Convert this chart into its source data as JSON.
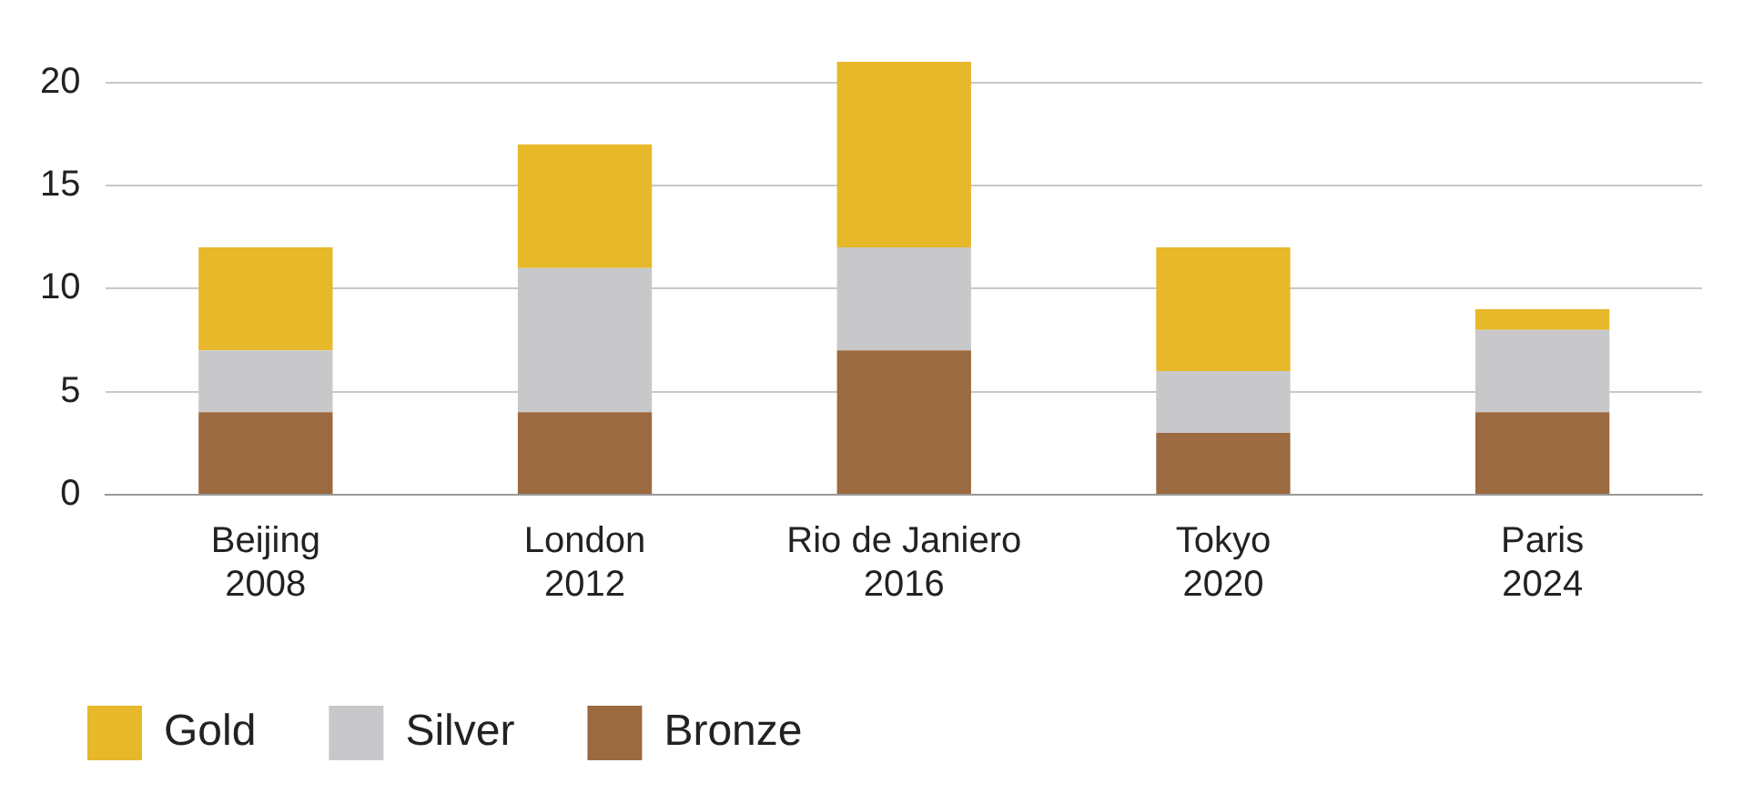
{
  "chart_data": {
    "type": "bar",
    "stacked": true,
    "categories": [
      "Beijing\n2008",
      "London\n2012",
      "Rio de Janiero\n2016",
      "Tokyo\n2020",
      "Paris\n2024"
    ],
    "series": [
      {
        "name": "Bronze",
        "color": "#9c6a40",
        "values": [
          4,
          4,
          7,
          3,
          4
        ]
      },
      {
        "name": "Silver",
        "color": "#c8c8ca",
        "values": [
          3,
          7,
          5,
          3,
          4
        ]
      },
      {
        "name": "Gold",
        "color": "#e6b82a",
        "values": [
          5,
          6,
          9,
          6,
          1
        ]
      }
    ],
    "ylim": [
      0,
      21
    ],
    "yticks": [
      0,
      5,
      10,
      15,
      20
    ],
    "grid": "y",
    "legend": "bottom"
  }
}
